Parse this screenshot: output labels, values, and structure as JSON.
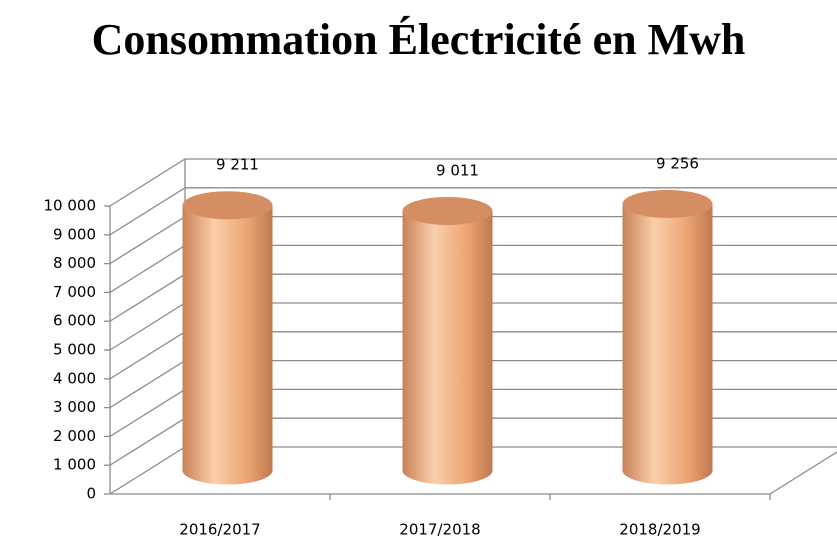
{
  "chart_data": {
    "type": "bar",
    "title": "Consommation Électricité en Mwh",
    "categories": [
      "2016/2017",
      "2017/2018",
      "2018/2019"
    ],
    "values": [
      9211,
      9011,
      9256
    ],
    "value_labels": [
      "9 211",
      "9 011",
      "9 256"
    ],
    "color": "#f4b183",
    "ylim": [
      0,
      10000
    ],
    "yticks": [
      0,
      {
        "value": 1000,
        "label": "1 000"
      },
      {
        "value": 2000,
        "label": "2 000"
      },
      {
        "value": 3000,
        "label": "3 000"
      },
      {
        "value": 4000,
        "label": "4 000"
      },
      {
        "value": 5000,
        "label": "5 000"
      },
      {
        "value": 6000,
        "label": "6 000"
      },
      {
        "value": 7000,
        "label": "7 000"
      },
      {
        "value": 8000,
        "label": "8 000"
      },
      {
        "value": 9000,
        "label": "9 000"
      },
      {
        "value": 10000,
        "label": "10 000"
      }
    ],
    "grid": true
  }
}
